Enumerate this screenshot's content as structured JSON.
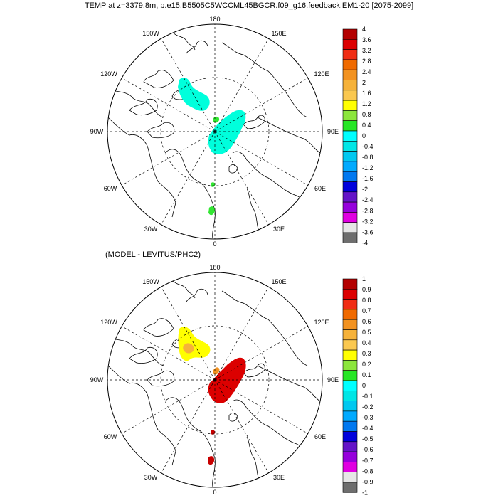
{
  "title": "TEMP at z=3379.8m, b.e15.B5505C5WCCML45BGCR.f09_g16.feedback.EM1-20 [2075-2099]",
  "panels": [
    {
      "id": "top",
      "longitude_labels": {
        "180": "180",
        "150W": "150W",
        "150E": "150E",
        "120W": "120W",
        "120E": "120E",
        "90W": "90W",
        "90E": "90E",
        "60W": "60W",
        "60E": "60E",
        "30W": "30W",
        "30E": "30E",
        "0": "0"
      },
      "colorbar": {
        "labels": [
          "4",
          "3.6",
          "3.2",
          "2.8",
          "2.4",
          "2",
          "1.6",
          "1.2",
          "0.8",
          "0.4",
          "0",
          "-0.4",
          "-0.8",
          "-1.2",
          "-1.6",
          "-2",
          "-2.4",
          "-2.8",
          "-3.2",
          "-3.6",
          "-4"
        ],
        "colors": [
          "#b40000",
          "#dc0000",
          "#f02d14",
          "#f06a00",
          "#f29220",
          "#f6b23a",
          "#fac850",
          "#ffff00",
          "#8ce63c",
          "#26e626",
          "#00ffff",
          "#00e6e6",
          "#00c8f0",
          "#00aaff",
          "#0078f0",
          "#0000dc",
          "#6414c8",
          "#9600dc",
          "#e100e1",
          "#e6e6e6",
          "#6e6e6e"
        ]
      },
      "regions": [
        {
          "name": "canadian-basin-anomaly",
          "value": -0.6,
          "fill": "#00ffdc"
        },
        {
          "name": "eurasian-basin-anomaly",
          "value": -0.6,
          "fill": "#00ffdc"
        },
        {
          "name": "lomonosov-small-anomaly",
          "value": 0.6,
          "fill": "#32e632"
        },
        {
          "name": "fram-strait-anomaly-1",
          "value": 0.6,
          "fill": "#32e632"
        },
        {
          "name": "fram-strait-anomaly-2",
          "value": 0.6,
          "fill": "#32e632"
        }
      ]
    },
    {
      "id": "bottom",
      "subtitle": "(MODEL - LEVITUS/PHC2)",
      "longitude_labels": {
        "180": "180",
        "150W": "150W",
        "150E": "150E",
        "120W": "120W",
        "120E": "120E",
        "90W": "90W",
        "90E": "90E",
        "60W": "60W",
        "60E": "60E",
        "30W": "30W",
        "30E": "30E",
        "0": "0"
      },
      "colorbar": {
        "labels": [
          "1",
          "0.9",
          "0.8",
          "0.7",
          "0.6",
          "0.5",
          "0.4",
          "0.3",
          "0.2",
          "0.1",
          "0",
          "-0.1",
          "-0.2",
          "-0.3",
          "-0.4",
          "-0.5",
          "-0.6",
          "-0.7",
          "-0.8",
          "-0.9",
          "-1"
        ],
        "colors": [
          "#b40000",
          "#dc0000",
          "#f02d14",
          "#f06a00",
          "#f29220",
          "#f6b23a",
          "#fac850",
          "#ffff00",
          "#8ce63c",
          "#26e626",
          "#00ffff",
          "#00e6e6",
          "#00c8f0",
          "#00aaff",
          "#0078f0",
          "#0000dc",
          "#6414c8",
          "#9600dc",
          "#e100e1",
          "#e6e6e6",
          "#6e6e6e"
        ]
      },
      "regions": [
        {
          "name": "canadian-basin-anomaly",
          "value": 0.3,
          "fill": "#ffff00"
        },
        {
          "name": "canadian-basin-core",
          "value": 0.45,
          "fill": "#f6b23a"
        },
        {
          "name": "eurasian-basin-anomaly",
          "value": 0.95,
          "fill": "#dc0000"
        },
        {
          "name": "lomonosov-small-anomaly",
          "value": 0.6,
          "fill": "#f29220"
        },
        {
          "name": "fram-strait-anomaly-1",
          "value": 0.95,
          "fill": "#c80000"
        },
        {
          "name": "fram-strait-anomaly-2",
          "value": 0.95,
          "fill": "#c80000"
        }
      ]
    }
  ]
}
